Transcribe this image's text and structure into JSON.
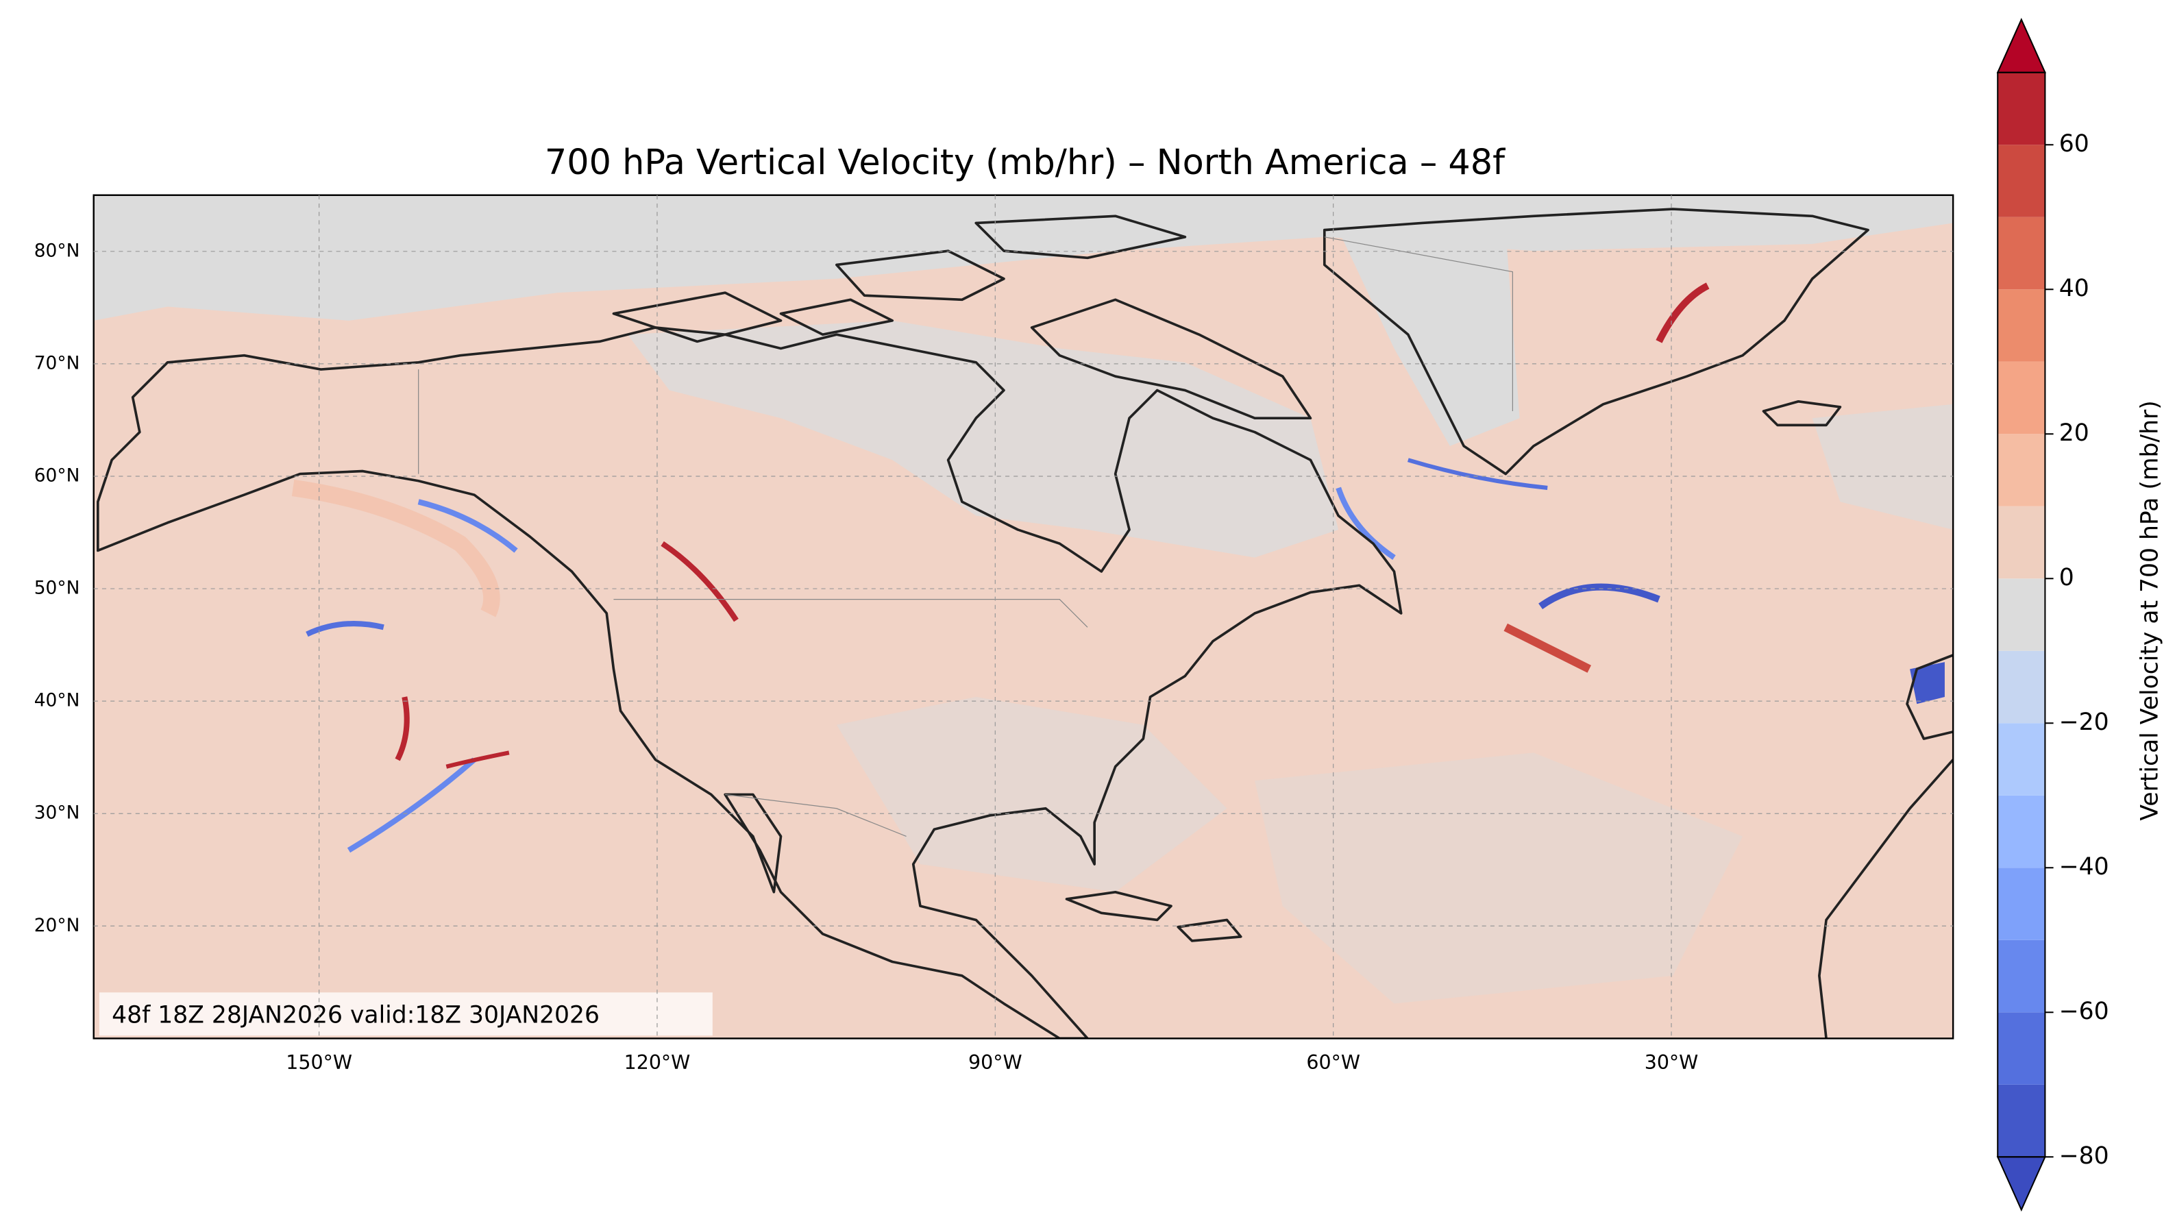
{
  "chart_data": {
    "type": "map",
    "title": "700 hPa Vertical Velocity (mb/hr) – North America – 48f",
    "annotation": "48f 18Z 28JAN2026 valid:18Z 30JAN2026",
    "xlim": [
      -170,
      -5
    ],
    "ylim": [
      10,
      85
    ],
    "xticks": [
      {
        "value": -150,
        "label": "150°W"
      },
      {
        "value": -120,
        "label": "120°W"
      },
      {
        "value": -90,
        "label": "90°W"
      },
      {
        "value": -60,
        "label": "60°W"
      },
      {
        "value": -30,
        "label": "30°W"
      }
    ],
    "yticks": [
      {
        "value": 20,
        "label": "20°N"
      },
      {
        "value": 30,
        "label": "30°N"
      },
      {
        "value": 40,
        "label": "40°N"
      },
      {
        "value": 50,
        "label": "50°N"
      },
      {
        "value": 60,
        "label": "60°N"
      },
      {
        "value": 70,
        "label": "70°N"
      },
      {
        "value": 80,
        "label": "80°N"
      }
    ],
    "grid": true,
    "colorbar": {
      "label": "Vertical Velocity at 700 hPa (mb/hr)",
      "ticks": [
        {
          "value": -80,
          "label": "−80"
        },
        {
          "value": -60,
          "label": "−60"
        },
        {
          "value": -40,
          "label": "−40"
        },
        {
          "value": -20,
          "label": "−20"
        },
        0,
        20,
        40,
        60
      ],
      "levels": [
        -80,
        -70,
        -60,
        -50,
        -40,
        -30,
        -20,
        -10,
        0,
        10,
        20,
        30,
        40,
        50,
        60,
        70
      ],
      "colors": [
        "#4358c9",
        "#5470de",
        "#6788ee",
        "#7ea1fa",
        "#96b7ff",
        "#adc9fd",
        "#c6d6f1",
        "#dcdcdc",
        "#efcfbf",
        "#f5bda3",
        "#f4a586",
        "#ec8c6c",
        "#de6b54",
        "#cc4a40",
        "#b92530"
      ],
      "extend": "both",
      "under_color": "#3b4cc0",
      "over_color": "#b40426"
    }
  }
}
